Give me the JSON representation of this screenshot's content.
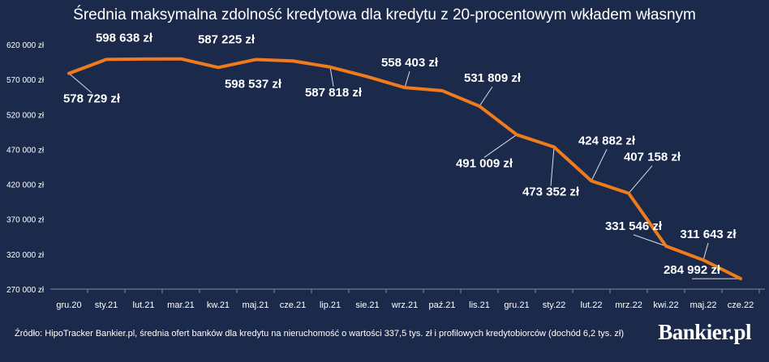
{
  "chart_data": {
    "type": "line",
    "title": "Średnia maksymalna zdolność kredytowa dla kredytu z 20-procentowym wkładem własnym",
    "categories": [
      "gru.20",
      "sty.21",
      "lut.21",
      "mar.21",
      "kw.21",
      "maj.21",
      "cze.21",
      "lip.21",
      "sie.21",
      "wrz.21",
      "paź.21",
      "lis.21",
      "gru.21",
      "sty.22",
      "lut.22",
      "mrz.22",
      "kwi.22",
      "maj.22",
      "cze.22"
    ],
    "series": [
      {
        "values": [
          578729,
          598638,
          599300,
          599500,
          587225,
          598537,
          596500,
          587818,
          574000,
          558403,
          554000,
          531809,
          491009,
          473352,
          424882,
          407158,
          331546,
          311643,
          284992
        ]
      }
    ],
    "data_labels": {
      "0": "578 729 zł",
      "1": "598 638 zł",
      "4": "587 225 zł",
      "5": "598 537 zł",
      "7": "587 818 zł",
      "9": "558 403 zł",
      "11": "531 809 zł",
      "12": "491 009 zł",
      "13": "473 352 zł",
      "14": "424 882 zł",
      "15": "407 158 zł",
      "16": "331 546 zł",
      "17": "311 643 zł",
      "18": "284 992 zł"
    },
    "yticks": [
      "270 000 zł",
      "320 000 zł",
      "370 000 zł",
      "420 000 zł",
      "470 000 zł",
      "520 000 zł",
      "570 000 zł",
      "620 000 zł"
    ],
    "ytick_values": [
      270000,
      320000,
      370000,
      420000,
      470000,
      520000,
      570000,
      620000
    ],
    "ylim": [
      270000,
      620000
    ],
    "grid": false,
    "line_color": "#f07b1d",
    "background_color": "#1b2a4b",
    "text_color": "#ffffff"
  },
  "source_text": "Źródło: HipoTracker Bankier.pl, średnia ofert banków dla kredytu na nieruchomość o wartości 337,5 tys. zł i profilowych kredytobiorców (dochód 6,2 tys. zł)",
  "logo_text": "Bankier.pl"
}
